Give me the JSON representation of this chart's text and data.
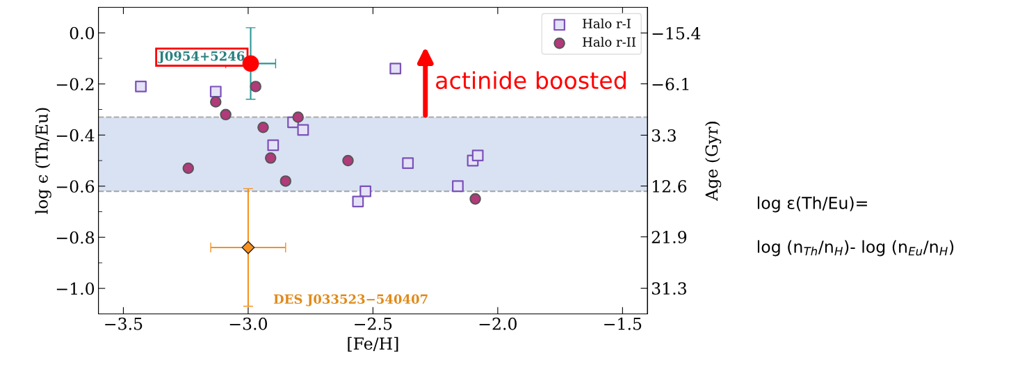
{
  "chart_data": {
    "type": "scatter",
    "xlabel": "[Fe/H]",
    "ylabel": "log ϵ (Th/Eu)",
    "y2label": "Age (Gyr)",
    "xlim": [
      -3.6,
      -1.4
    ],
    "ylim": [
      -1.1,
      0.1
    ],
    "y2lim": [
      36.0,
      -20.1
    ],
    "xticks": [
      {
        "value": -3.5,
        "label": "−3.5"
      },
      {
        "value": -3.0,
        "label": "−3.0"
      },
      {
        "value": -2.5,
        "label": "−2.5"
      },
      {
        "value": -2.0,
        "label": "−2.0"
      },
      {
        "value": -1.5,
        "label": "−1.5"
      }
    ],
    "yticks": [
      {
        "value": 0.0,
        "label": "0.0"
      },
      {
        "value": -0.2,
        "label": "−0.2"
      },
      {
        "value": -0.4,
        "label": "−0.4"
      },
      {
        "value": -0.6,
        "label": "−0.6"
      },
      {
        "value": -0.8,
        "label": "−0.8"
      },
      {
        "value": -1.0,
        "label": "−1.0"
      }
    ],
    "y2ticks": [
      {
        "value": -15.4,
        "label": "−15.4"
      },
      {
        "value": -6.1,
        "label": "−6.1"
      },
      3.3,
      12.6,
      21.9,
      31.3
    ],
    "series": [
      {
        "name": "Halo r-I",
        "color": "#7b52b8",
        "marker": "square",
        "x": [
          -3.43,
          -3.13,
          -2.82,
          -2.78,
          -2.9,
          -2.53,
          -2.56,
          -2.41,
          -2.36,
          -2.16,
          -2.1,
          -2.08
        ],
        "values": [
          -0.21,
          -0.23,
          -0.35,
          -0.38,
          -0.44,
          -0.62,
          -0.66,
          -0.14,
          -0.51,
          -0.6,
          -0.5,
          -0.48
        ]
      },
      {
        "name": "Halo r-II",
        "color": "#b03a7a",
        "marker": "circle",
        "x": [
          -3.13,
          -3.09,
          -2.97,
          -2.94,
          -2.91,
          -2.85,
          -2.8,
          -3.24,
          -2.6,
          -2.09
        ],
        "values": [
          -0.27,
          -0.32,
          -0.21,
          -0.37,
          -0.49,
          -0.58,
          -0.33,
          -0.53,
          -0.5,
          -0.65
        ]
      },
      {
        "name": "J0954+5246",
        "color": "#ff0000",
        "marker": "circle",
        "x": [
          -2.99
        ],
        "values": [
          -0.12
        ],
        "errors": [
          0.14
        ],
        "xerrors": [
          0.1
        ]
      },
      {
        "name": "DES J033523−540407",
        "color": "#f7901e",
        "marker": "diamond",
        "x": [
          -3.0
        ],
        "values": [
          -0.84
        ],
        "errors": [
          0.23
        ],
        "xerrors": [
          0.15
        ]
      }
    ],
    "bands": [
      {
        "axis": "y",
        "from": -0.62,
        "to": -0.33,
        "color": "#d9e2f3"
      }
    ],
    "ref_lines": [
      {
        "axis": "y",
        "value": -0.33,
        "color": "#aaaaaa",
        "line_style": "dashed"
      },
      {
        "axis": "y",
        "value": -0.62,
        "color": "#aaaaaa",
        "line_style": "dashed"
      }
    ],
    "annotations": [
      {
        "text": "actinide boosted",
        "x": -2.29,
        "y": -0.33
      },
      "log ε(Th/Eu)=",
      "log (n$_{Th}$/n$_{H}$)- log (n$_{Eu}$/n$_{H}$)"
    ],
    "legend": "top right",
    "grid": false
  }
}
